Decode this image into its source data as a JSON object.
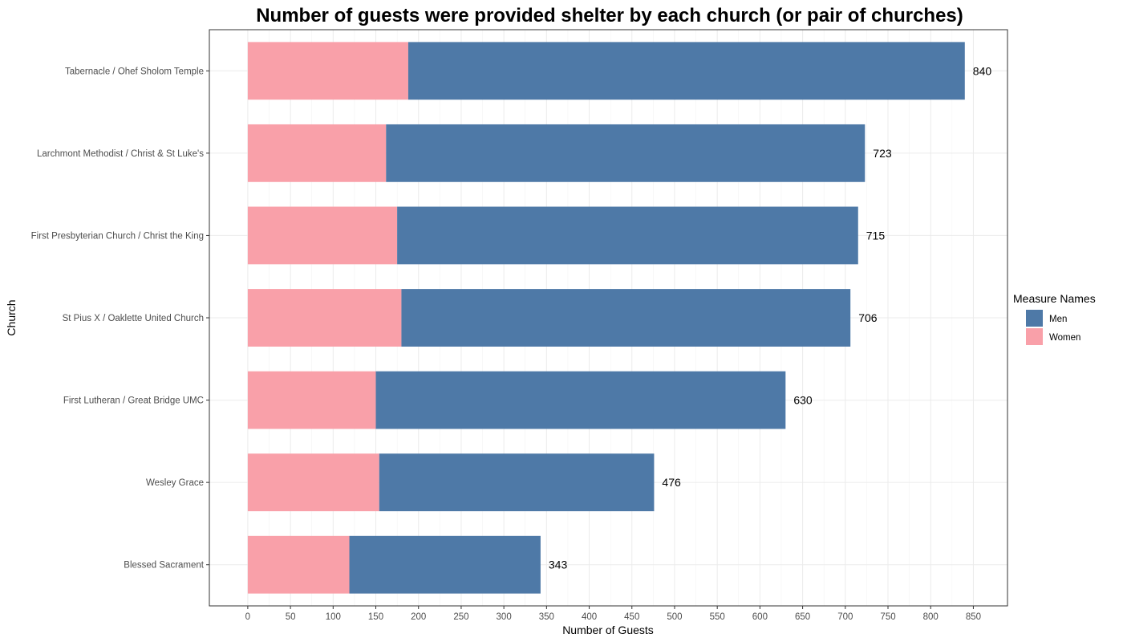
{
  "chart_data": {
    "type": "bar",
    "orientation": "horizontal",
    "stacked": true,
    "title": "Number of guests were provided shelter by each church (or pair of churches)",
    "xlabel": "Number of Guests",
    "ylabel": "Church",
    "xlim": [
      -45,
      890
    ],
    "x_ticks": [
      0,
      50,
      100,
      150,
      200,
      250,
      300,
      350,
      400,
      450,
      500,
      550,
      600,
      650,
      700,
      750,
      800,
      850
    ],
    "grid": true,
    "categories": [
      "Tabernacle / Ohef Sholom Temple",
      "Larchmont Methodist / Christ & St Luke's",
      "First Presbyterian Church / Christ the King",
      "St Pius X / Oaklette United Church",
      "First Lutheran / Great Bridge UMC",
      "Wesley Grace",
      "Blessed Sacrament"
    ],
    "series": [
      {
        "name": "Women",
        "color": "#f9a0a9",
        "values": [
          188,
          162,
          175,
          180,
          150,
          154,
          119
        ]
      },
      {
        "name": "Men",
        "color": "#4e79a7",
        "values": [
          652,
          561,
          540,
          526,
          480,
          322,
          224
        ]
      }
    ],
    "totals": [
      840,
      723,
      715,
      706,
      630,
      476,
      343
    ],
    "legend": {
      "title": "Measure Names",
      "position": "right",
      "entries": [
        {
          "label": "Men",
          "color": "#4e79a7"
        },
        {
          "label": "Women",
          "color": "#f9a0a9"
        }
      ]
    }
  }
}
